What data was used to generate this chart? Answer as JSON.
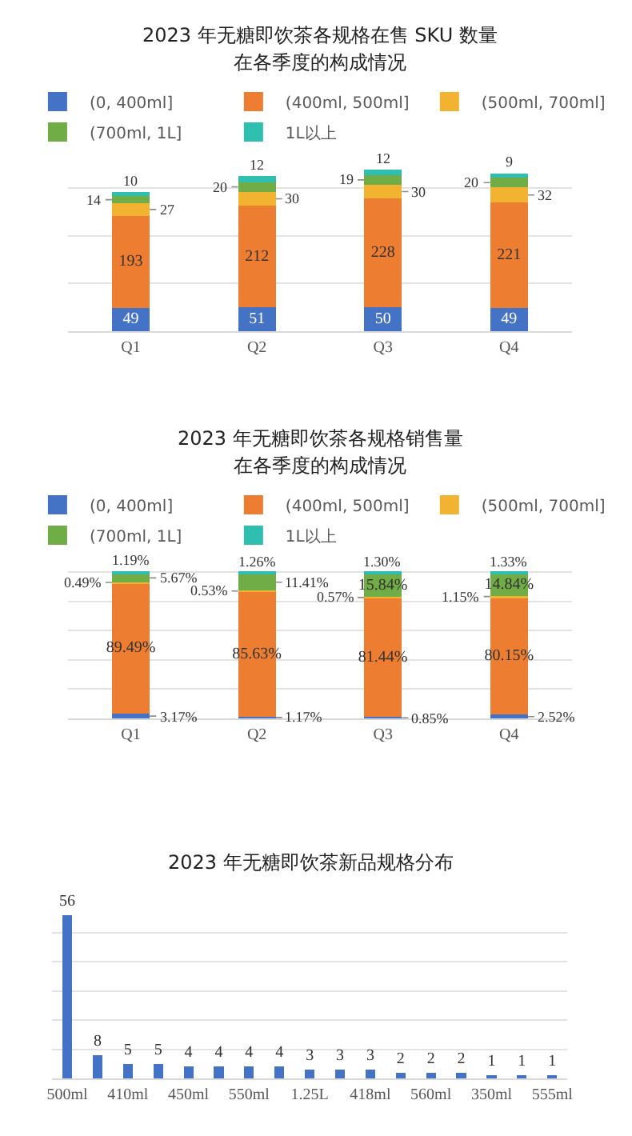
{
  "chart_data": [
    {
      "type": "bar",
      "title": "2023 年无糖即饮茶各规格在售 SKU 数量",
      "subtitle": "在各季度的构成情况",
      "categories": [
        "Q1",
        "Q2",
        "Q3",
        "Q4"
      ],
      "stacked": true,
      "data_labels": true,
      "legend": "top",
      "grid": "y",
      "tick_labels": "x",
      "series": [
        {
          "name": "(0, 400ml]",
          "color": "#4472c4",
          "values": [
            49,
            51,
            50,
            49
          ]
        },
        {
          "name": "(400ml, 500ml]",
          "color": "#ed7d31",
          "values": [
            193,
            212,
            228,
            221
          ]
        },
        {
          "name": "(500ml, 700ml]",
          "color": "#f2b330",
          "values": [
            27,
            30,
            30,
            32
          ]
        },
        {
          "name": "(700ml, 1L]",
          "color": "#70ad47",
          "values": [
            14,
            20,
            19,
            20
          ]
        },
        {
          "name": "1L以上",
          "color": "#2ebfb0",
          "values": [
            10,
            12,
            12,
            9
          ]
        }
      ]
    },
    {
      "type": "bar",
      "title": "2023 年无糖即饮茶各规格销售量",
      "subtitle": "在各季度的构成情况",
      "categories": [
        "Q1",
        "Q2",
        "Q3",
        "Q4"
      ],
      "stacked": true,
      "legend": "top",
      "grid": "y",
      "tick_labels": "x",
      "series": [
        {
          "name": "(0, 400ml]",
          "color": "#4472c4",
          "values": [
            3.17,
            1.17,
            0.85,
            2.52
          ],
          "value_labels": [
            "3.17%",
            "1.17%",
            "0.85%",
            "2.52%"
          ]
        },
        {
          "name": "(400ml, 500ml]",
          "color": "#ed7d31",
          "values": [
            89.49,
            85.63,
            81.44,
            80.15
          ],
          "value_labels": [
            "89.49%",
            "85.63%",
            "81.44%",
            "80.15%"
          ]
        },
        {
          "name": "(500ml, 700ml]",
          "color": "#f2b330",
          "values": [
            0.49,
            0.53,
            0.57,
            1.15
          ],
          "value_labels": [
            "0.49%",
            "0.53%",
            "0.57%",
            "1.15%"
          ]
        },
        {
          "name": "(700ml, 1L]",
          "color": "#70ad47",
          "values": [
            5.67,
            11.41,
            15.84,
            14.84
          ],
          "value_labels": [
            "5.67%",
            "11.41%",
            "15.84%",
            "14.84%"
          ]
        },
        {
          "name": "1L以上",
          "color": "#2ebfb0",
          "values": [
            1.19,
            1.26,
            1.3,
            1.33
          ],
          "value_labels": [
            "1.19%",
            "1.26%",
            "1.30%",
            "1.33%"
          ]
        }
      ]
    },
    {
      "type": "bar",
      "title": "2023 年无糖即饮茶新品规格分布",
      "categories": [
        "500ml",
        null,
        "410ml",
        null,
        "450ml",
        null,
        "550ml",
        null,
        "1.25L",
        null,
        "418ml",
        null,
        "560ml",
        null,
        "350ml",
        null,
        "555ml"
      ],
      "data_labels": true,
      "grid": "y",
      "tick_labels": "x",
      "color": "#4472c4",
      "values": [
        56,
        8,
        5,
        5,
        4,
        4,
        4,
        4,
        3,
        3,
        3,
        2,
        2,
        2,
        1,
        1,
        1
      ]
    }
  ]
}
